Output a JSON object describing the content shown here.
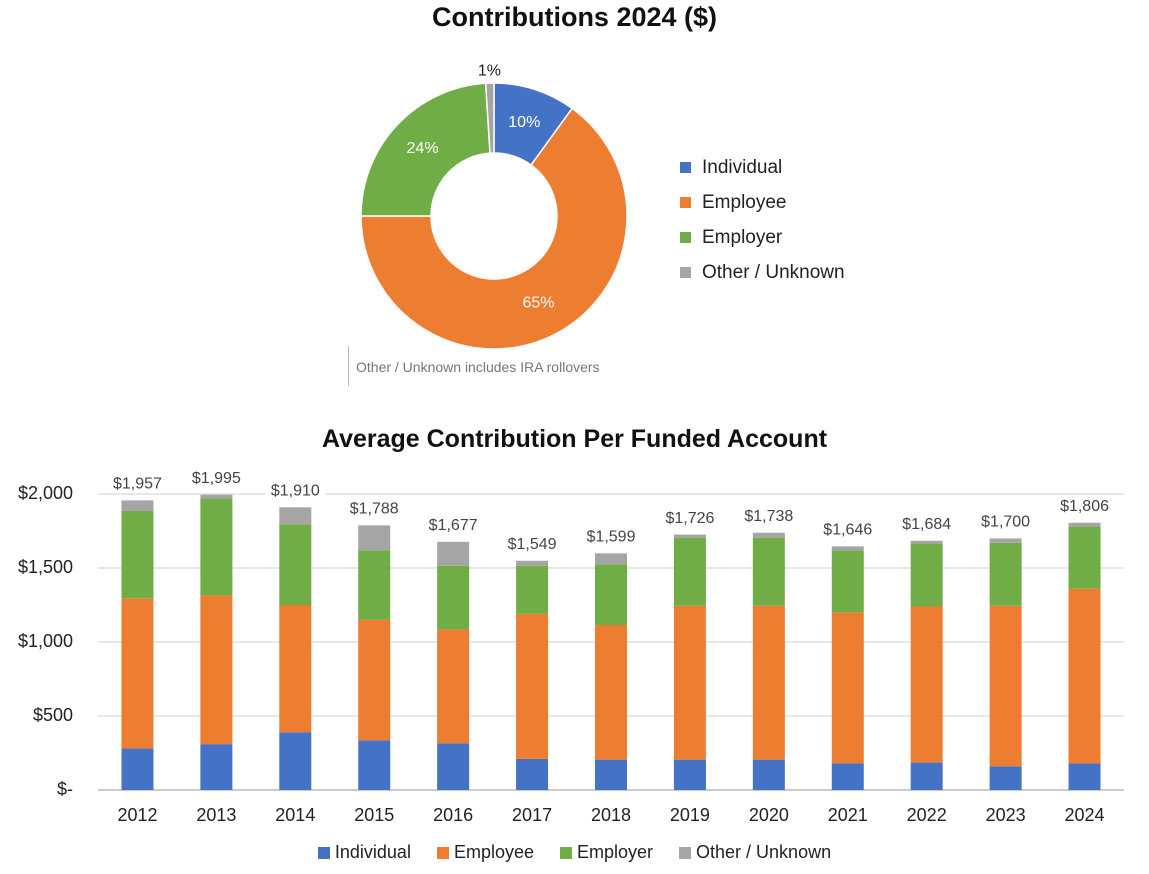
{
  "colors": {
    "individual": "#4472c4",
    "employee": "#ed7d31",
    "employer": "#70ad47",
    "other": "#a5a5a5"
  },
  "chart_data": [
    {
      "type": "pie",
      "title": "Contributions 2024 ($)",
      "labels": [
        "Individual",
        "Employee",
        "Employer",
        "Other / Unknown"
      ],
      "values": [
        10,
        65,
        24,
        1
      ],
      "value_labels": [
        "10%",
        "65%",
        "24%",
        "1%"
      ],
      "legend": "right",
      "note": "Other / Unknown includes IRA rollovers"
    },
    {
      "type": "bar",
      "stacked": true,
      "title": "Average Contribution Per Funded Account",
      "categories": [
        "2012",
        "2013",
        "2014",
        "2015",
        "2016",
        "2017",
        "2018",
        "2019",
        "2020",
        "2021",
        "2022",
        "2023",
        "2024"
      ],
      "series": [
        {
          "name": "Individual",
          "values": [
            280,
            310,
            390,
            335,
            315,
            210,
            205,
            205,
            205,
            180,
            185,
            160,
            180
          ]
        },
        {
          "name": "Employee",
          "values": [
            1015,
            1005,
            860,
            815,
            770,
            980,
            910,
            1040,
            1040,
            1020,
            1055,
            1085,
            1180
          ]
        },
        {
          "name": "Employer",
          "values": [
            590,
            655,
            545,
            470,
            430,
            325,
            410,
            460,
            460,
            420,
            425,
            425,
            420
          ]
        },
        {
          "name": "Other / Unknown",
          "values": [
            72,
            25,
            115,
            168,
            162,
            34,
            74,
            21,
            33,
            26,
            19,
            30,
            26
          ]
        }
      ],
      "totals": [
        1957,
        1995,
        1910,
        1788,
        1677,
        1549,
        1599,
        1726,
        1738,
        1646,
        1684,
        1700,
        1806
      ],
      "total_labels": [
        "$1,957",
        "$1,995",
        "$1,910",
        "$1,788",
        "$1,677",
        "$1,549",
        "$1,599",
        "$1,726",
        "$1,738",
        "$1,646",
        "$1,684",
        "$1,700",
        "$1,806"
      ],
      "y_ticks": [
        0,
        500,
        1000,
        1500,
        2000
      ],
      "y_tick_labels": [
        "$-",
        "$500",
        "$1,000",
        "$1,500",
        "$2,000"
      ],
      "ylim": [
        0,
        2000
      ],
      "grid": true,
      "legend": "bottom"
    }
  ]
}
